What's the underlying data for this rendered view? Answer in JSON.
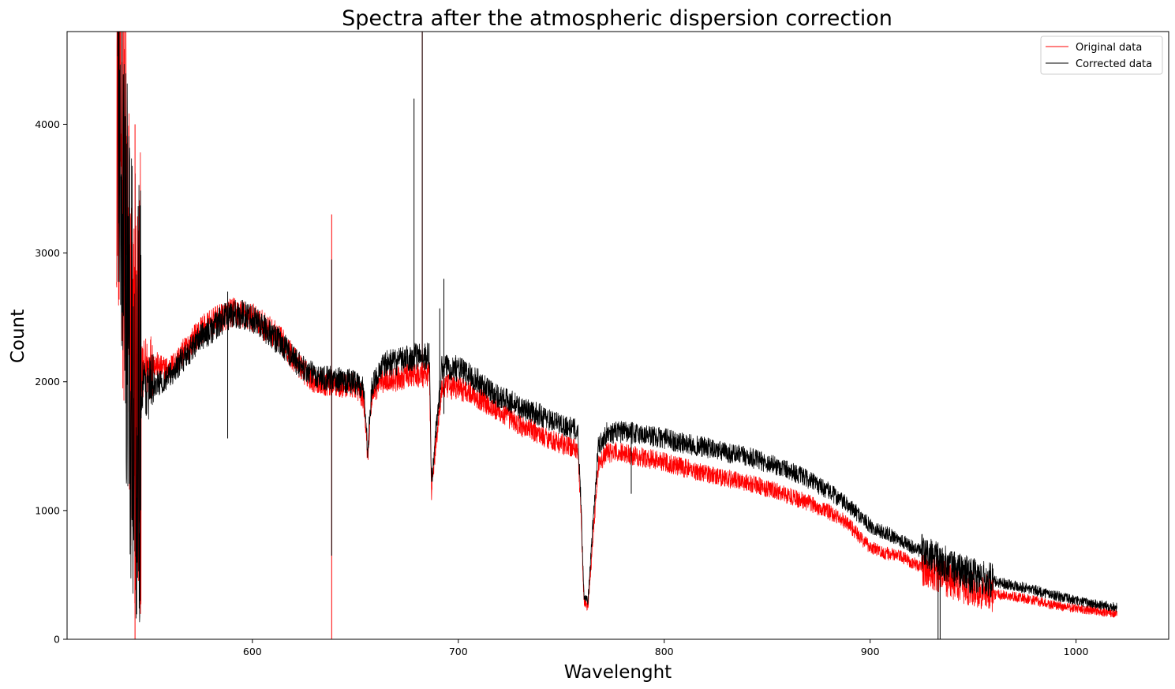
{
  "chart_data": {
    "type": "line",
    "title": "Spectra after the atmospheric dispersion correction",
    "xlabel": "Wavelenght",
    "ylabel": "Count",
    "xlim": [
      510,
      1045
    ],
    "ylim": [
      0,
      4720
    ],
    "xticks": [
      600,
      700,
      800,
      900,
      1000
    ],
    "yticks": [
      0,
      1000,
      2000,
      3000,
      4000
    ],
    "grid": false,
    "legend": "top-right",
    "series": [
      {
        "name": "Original data",
        "color": "#ff0000",
        "x": [
          534,
          536,
          538,
          540,
          542,
          544,
          548,
          552,
          556,
          560,
          565,
          570,
          575,
          580,
          585,
          590,
          595,
          600,
          605,
          610,
          615,
          620,
          625,
          630,
          635,
          640,
          645,
          650,
          654,
          656,
          658,
          662,
          666,
          670,
          675,
          680,
          684,
          686,
          687,
          689,
          692,
          695,
          700,
          705,
          710,
          715,
          720,
          725,
          730,
          735,
          740,
          745,
          750,
          755,
          758,
          759.5,
          761,
          763,
          765,
          768,
          772,
          780,
          790,
          800,
          810,
          820,
          830,
          840,
          850,
          860,
          870,
          880,
          890,
          895,
          900,
          905,
          910,
          915,
          920,
          925,
          930,
          935,
          940,
          950,
          960,
          970,
          980,
          990,
          1000,
          1010,
          1020
        ],
        "y": [
          4500,
          4000,
          3500,
          2600,
          1600,
          1900,
          2100,
          2150,
          2100,
          2100,
          2200,
          2300,
          2400,
          2450,
          2500,
          2540,
          2520,
          2500,
          2440,
          2380,
          2300,
          2180,
          2080,
          2010,
          1990,
          1980,
          1970,
          1970,
          1880,
          1420,
          1900,
          2000,
          2020,
          2020,
          2050,
          2050,
          2050,
          2060,
          1150,
          1500,
          1950,
          1960,
          1950,
          1930,
          1880,
          1820,
          1760,
          1720,
          1660,
          1630,
          1590,
          1550,
          1520,
          1490,
          1480,
          1000,
          300,
          250,
          700,
          1350,
          1450,
          1450,
          1410,
          1380,
          1330,
          1290,
          1250,
          1220,
          1170,
          1120,
          1060,
          990,
          890,
          790,
          720,
          680,
          660,
          640,
          600,
          560,
          520,
          490,
          440,
          390,
          350,
          330,
          300,
          260,
          240,
          220,
          200
        ]
      },
      {
        "name": "Corrected data",
        "color": "#000000",
        "x": [
          534,
          536,
          538,
          540,
          542,
          544,
          548,
          552,
          556,
          560,
          565,
          570,
          575,
          580,
          585,
          590,
          595,
          600,
          605,
          610,
          615,
          620,
          625,
          630,
          635,
          640,
          645,
          650,
          654,
          656,
          658,
          662,
          666,
          670,
          675,
          680,
          684,
          686,
          687,
          689,
          692,
          695,
          700,
          705,
          710,
          715,
          720,
          725,
          730,
          735,
          740,
          745,
          750,
          755,
          758,
          759.5,
          761,
          763,
          765,
          768,
          772,
          780,
          790,
          800,
          810,
          820,
          830,
          840,
          850,
          860,
          870,
          880,
          890,
          895,
          900,
          905,
          910,
          915,
          920,
          925,
          930,
          935,
          940,
          950,
          960,
          970,
          980,
          990,
          1000,
          1010,
          1020
        ],
        "y": [
          4600,
          4200,
          3000,
          2200,
          1800,
          1900,
          1950,
          1980,
          2000,
          2050,
          2150,
          2250,
          2350,
          2400,
          2480,
          2530,
          2520,
          2500,
          2430,
          2350,
          2280,
          2180,
          2100,
          2050,
          2030,
          2020,
          2010,
          2000,
          1950,
          1480,
          1950,
          2100,
          2150,
          2150,
          2180,
          2200,
          2200,
          2200,
          1200,
          1600,
          2100,
          2120,
          2100,
          2060,
          2000,
          1940,
          1880,
          1850,
          1800,
          1770,
          1740,
          1700,
          1670,
          1640,
          1620,
          1100,
          350,
          300,
          800,
          1500,
          1600,
          1610,
          1590,
          1560,
          1520,
          1490,
          1450,
          1420,
          1370,
          1320,
          1240,
          1150,
          1030,
          960,
          880,
          840,
          810,
          770,
          720,
          680,
          640,
          600,
          560,
          490,
          450,
          420,
          380,
          340,
          300,
          270,
          250
        ]
      }
    ],
    "spikes": [
      {
        "series": "Original data",
        "x": 638.5,
        "y_from": 0,
        "y_to": 3300
      },
      {
        "series": "Original data",
        "x": 682.5,
        "y_from": 2100,
        "y_to": 4720
      },
      {
        "series": "Original data",
        "x": 543,
        "y_from": 0,
        "y_to": 4000
      },
      {
        "series": "Corrected data",
        "x": 588,
        "y_from": 1560,
        "y_to": 2700
      },
      {
        "series": "Corrected data",
        "x": 638.5,
        "y_from": 650,
        "y_to": 2950
      },
      {
        "series": "Corrected data",
        "x": 678.5,
        "y_from": 2100,
        "y_to": 4200
      },
      {
        "series": "Corrected data",
        "x": 682.5,
        "y_from": 2150,
        "y_to": 4720
      },
      {
        "series": "Corrected data",
        "x": 691,
        "y_from": 1800,
        "y_to": 2570
      },
      {
        "series": "Corrected data",
        "x": 693,
        "y_from": 1750,
        "y_to": 2800
      },
      {
        "series": "Corrected data",
        "x": 784,
        "y_from": 1130,
        "y_to": 1600
      },
      {
        "series": "Corrected data",
        "x": 933,
        "y_from": 0,
        "y_to": 650
      },
      {
        "series": "Corrected data",
        "x": 934,
        "y_from": 0,
        "y_to": 600
      }
    ]
  }
}
